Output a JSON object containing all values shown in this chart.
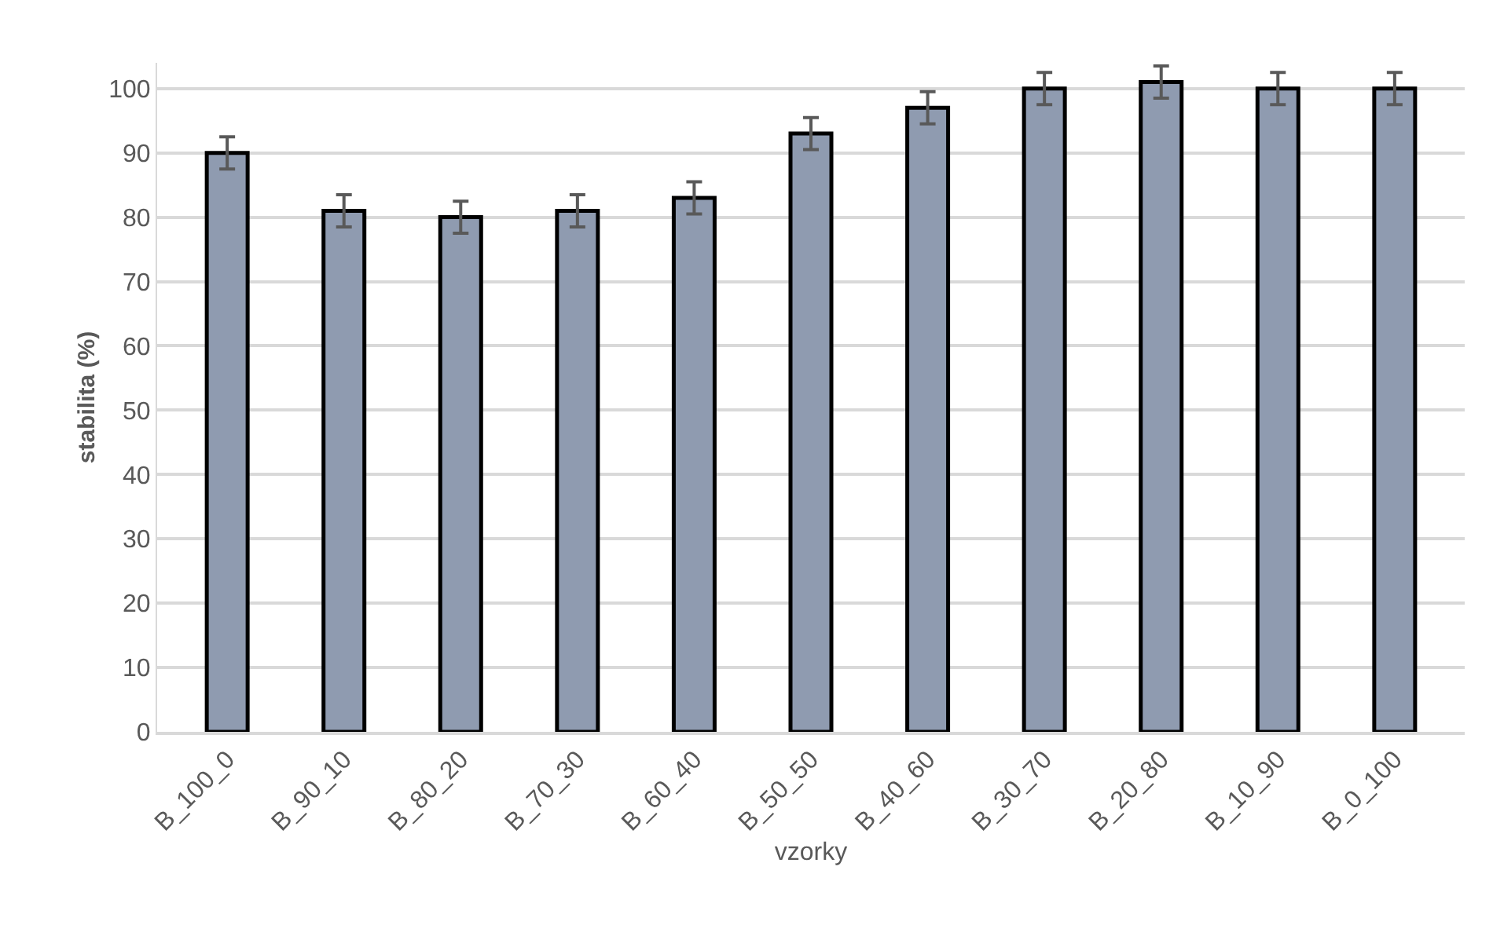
{
  "chart_data": {
    "type": "bar",
    "xlabel": "vzorky",
    "ylabel": "stabilita (%)",
    "categories": [
      "B_100_0",
      "B_90_10",
      "B_80_20",
      "B_70_30",
      "B_60_40",
      "B_50_50",
      "B_40_60",
      "B_30_70",
      "B_20_80",
      "B_10_90",
      "B_0_100"
    ],
    "values": [
      90,
      81,
      80,
      81,
      83,
      93,
      97,
      100,
      101,
      100,
      100
    ],
    "errors": [
      2.5,
      2.5,
      2.5,
      2.5,
      2.5,
      2.5,
      2.5,
      2.5,
      2.5,
      2.5,
      2.5
    ],
    "color": "#8f9bb0",
    "ylim": [
      0,
      104
    ],
    "yticks": [
      0,
      10,
      20,
      30,
      40,
      50,
      60,
      70,
      80,
      90,
      100
    ],
    "grid": "y"
  }
}
